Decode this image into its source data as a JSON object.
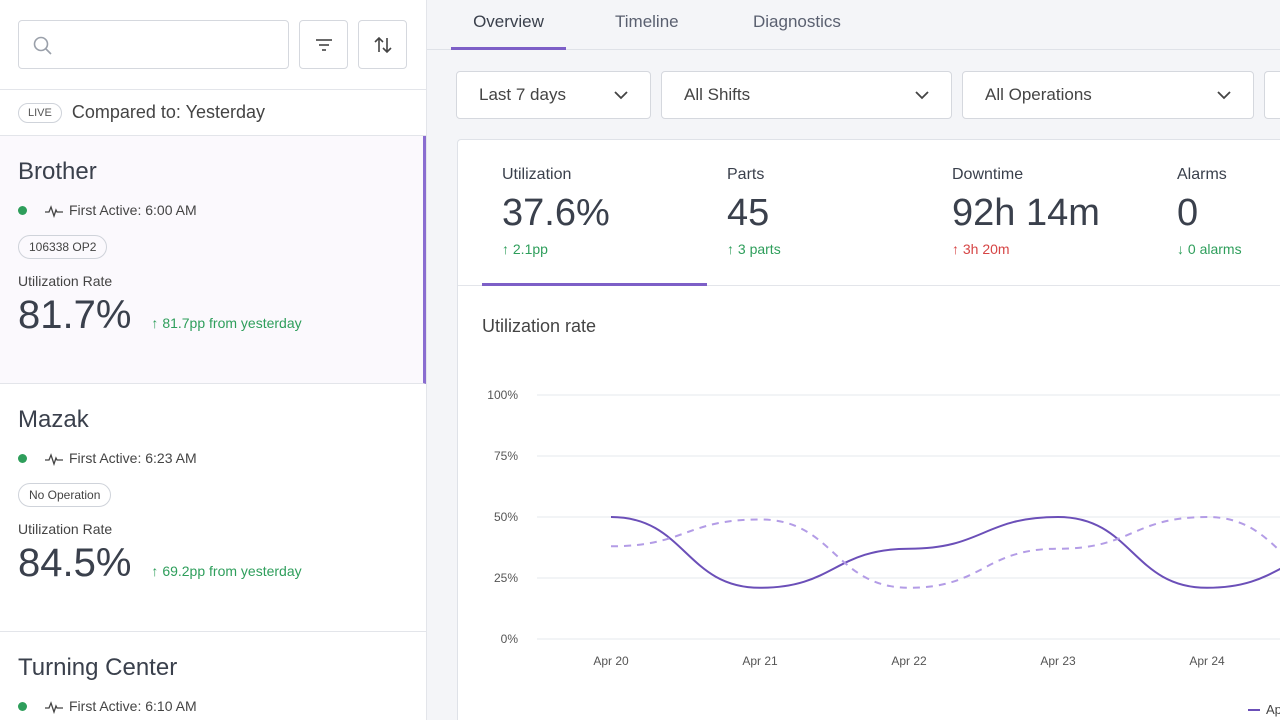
{
  "sidebar": {
    "search": {
      "placeholder": ""
    },
    "filter_icon": "filter-icon",
    "sort_icon": "sort-icon",
    "live_badge": "LIVE",
    "compared_to": "Compared to: Yesterday",
    "machines": [
      {
        "name": "Brother",
        "first_active": "First Active: 6:00 AM",
        "status_color": "#2e9e5b",
        "operation": "106338 OP2",
        "util_label": "Utilization Rate",
        "util_value": "81.7%",
        "util_delta": "81.7pp from yesterday",
        "selected": true
      },
      {
        "name": "Mazak",
        "first_active": "First Active: 6:23 AM",
        "status_color": "#2e9e5b",
        "operation": "No Operation",
        "util_label": "Utilization Rate",
        "util_value": "84.5%",
        "util_delta": "69.2pp from yesterday",
        "selected": false
      },
      {
        "name": "Turning Center",
        "first_active": "First Active: 6:10 AM",
        "status_color": "#2e9e5b",
        "selected": false
      }
    ]
  },
  "tabs": [
    {
      "label": "Overview",
      "active": true
    },
    {
      "label": "Timeline"
    },
    {
      "label": "Diagnostics"
    }
  ],
  "filters": {
    "range": "Last 7 days",
    "shift": "All Shifts",
    "operation": "All Operations"
  },
  "kpis": [
    {
      "label": "Utilization",
      "value": "37.6%",
      "delta": "2.1pp",
      "dir": "up",
      "good": true
    },
    {
      "label": "Parts",
      "value": "45",
      "delta": "3 parts",
      "dir": "up",
      "good": true
    },
    {
      "label": "Downtime",
      "value": "92h 14m",
      "delta": "3h 20m",
      "dir": "up",
      "good": false
    },
    {
      "label": "Alarms",
      "value": "0",
      "delta": "0 alarms",
      "dir": "down",
      "good": true
    }
  ],
  "chart_title": "Utilization rate",
  "chart_data": {
    "type": "line",
    "categories": [
      "Apr 20",
      "Apr 21",
      "Apr 22",
      "Apr 23",
      "Apr 24"
    ],
    "yticks": [
      "0%",
      "25%",
      "50%",
      "75%",
      "100%"
    ],
    "ylim": [
      0,
      100
    ],
    "grid": true,
    "series": [
      {
        "style": "solid",
        "color": "#6b4fb8",
        "values": [
          50,
          21,
          37,
          50,
          21
        ]
      },
      {
        "style": "dashed",
        "color": "#b39ce6",
        "values": [
          38,
          49,
          21,
          37,
          50
        ]
      }
    ],
    "legend_text": "Ap",
    "legend": "bottom-right"
  },
  "colors": {
    "accent": "#7d5fc7",
    "positive": "#2e9e5b",
    "negative": "#d64545"
  }
}
